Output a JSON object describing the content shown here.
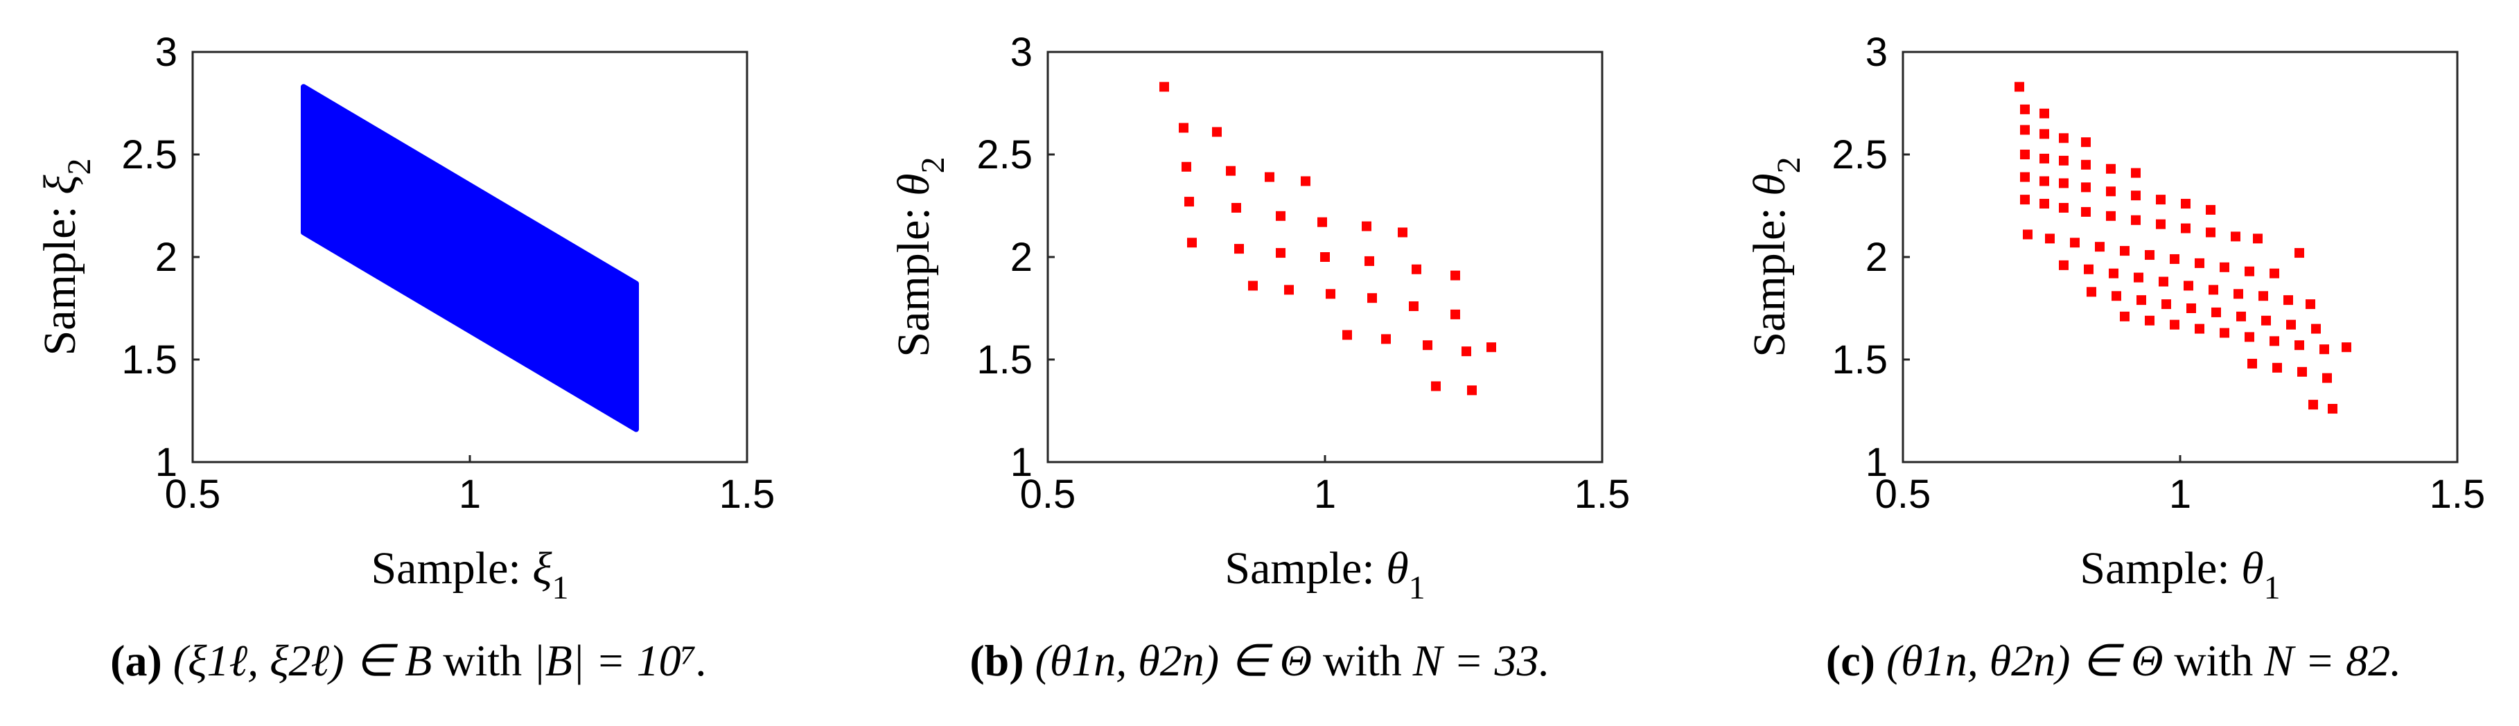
{
  "chart_data": [
    {
      "type": "scatter",
      "panel": "(a)",
      "xlabel": "Sample: ξ₁",
      "ylabel": "Sample: ξ₂",
      "xlabel_parts": {
        "prefix": "Sample: ",
        "symbol": "ξ",
        "sub": "1"
      },
      "ylabel_parts": {
        "prefix": "Sample: ",
        "symbol": "ξ",
        "sub": "2"
      },
      "xlim": [
        0.5,
        1.5
      ],
      "ylim": [
        1,
        3
      ],
      "xticks": [
        "0.5",
        "1",
        "1.5"
      ],
      "yticks": [
        "1",
        "1.5",
        "2",
        "2.5",
        "3"
      ],
      "grid": false,
      "color": "#0000ff",
      "region": {
        "description": "dense parallelogram of samples",
        "x_min": 0.7,
        "x_max": 1.3,
        "lower_at_xmin": 2.12,
        "upper_at_xmin": 2.83,
        "lower_at_xmax": 1.16,
        "upper_at_xmax": 1.87
      },
      "caption": {
        "label": "(a)",
        "math": "(ξ1ℓ, ξ2ℓ) ∈ B",
        "mid": " with ",
        "tail": "|B| = 10⁷."
      }
    },
    {
      "type": "scatter",
      "panel": "(b)",
      "xlabel": "Sample: θ₁",
      "ylabel": "Sample: θ₂",
      "xlabel_parts": {
        "prefix": "Sample: ",
        "symbol": "θ",
        "sub": "1"
      },
      "ylabel_parts": {
        "prefix": "Sample: ",
        "symbol": "θ",
        "sub": "2"
      },
      "xlim": [
        0.5,
        1.5
      ],
      "ylim": [
        1,
        3
      ],
      "xticks": [
        "0.5",
        "1",
        "1.5"
      ],
      "yticks": [
        "1",
        "1.5",
        "2",
        "2.5",
        "3"
      ],
      "grid": false,
      "color": "#ff0000",
      "points": [
        [
          0.71,
          2.83
        ],
        [
          0.745,
          2.63
        ],
        [
          0.805,
          2.61
        ],
        [
          0.75,
          2.44
        ],
        [
          0.83,
          2.42
        ],
        [
          0.9,
          2.39
        ],
        [
          0.965,
          2.37
        ],
        [
          0.755,
          2.27
        ],
        [
          0.84,
          2.24
        ],
        [
          0.92,
          2.2
        ],
        [
          0.995,
          2.17
        ],
        [
          1.075,
          2.15
        ],
        [
          1.14,
          2.12
        ],
        [
          0.76,
          2.07
        ],
        [
          0.845,
          2.04
        ],
        [
          0.92,
          2.02
        ],
        [
          1.0,
          2.0
        ],
        [
          1.08,
          1.98
        ],
        [
          1.165,
          1.94
        ],
        [
          1.235,
          1.91
        ],
        [
          0.87,
          1.86
        ],
        [
          0.935,
          1.84
        ],
        [
          1.01,
          1.82
        ],
        [
          1.085,
          1.8
        ],
        [
          1.16,
          1.76
        ],
        [
          1.235,
          1.72
        ],
        [
          1.04,
          1.62
        ],
        [
          1.11,
          1.6
        ],
        [
          1.185,
          1.57
        ],
        [
          1.255,
          1.54
        ],
        [
          1.3,
          1.56
        ],
        [
          1.2,
          1.37
        ],
        [
          1.265,
          1.35
        ]
      ],
      "caption": {
        "label": "(b)",
        "math": "(θ1n, θ2n) ∈ Θ",
        "mid": " with ",
        "tail": "N = 33."
      }
    },
    {
      "type": "scatter",
      "panel": "(c)",
      "xlabel": "Sample: θ₁",
      "ylabel": "Sample: θ₂",
      "xlabel_parts": {
        "prefix": "Sample: ",
        "symbol": "θ",
        "sub": "1"
      },
      "ylabel_parts": {
        "prefix": "Sample: ",
        "symbol": "θ",
        "sub": "2"
      },
      "xlim": [
        0.5,
        1.5
      ],
      "ylim": [
        1,
        3
      ],
      "xticks": [
        "0.5",
        "1",
        "1.5"
      ],
      "yticks": [
        "1",
        "1.5",
        "2",
        "2.5",
        "3"
      ],
      "grid": false,
      "color": "#ff0000",
      "points": [
        [
          0.71,
          2.83
        ],
        [
          0.72,
          2.72
        ],
        [
          0.755,
          2.7
        ],
        [
          0.72,
          2.62
        ],
        [
          0.755,
          2.6
        ],
        [
          0.79,
          2.58
        ],
        [
          0.83,
          2.56
        ],
        [
          0.72,
          2.5
        ],
        [
          0.755,
          2.48
        ],
        [
          0.79,
          2.47
        ],
        [
          0.83,
          2.45
        ],
        [
          0.875,
          2.43
        ],
        [
          0.92,
          2.41
        ],
        [
          0.72,
          2.39
        ],
        [
          0.755,
          2.37
        ],
        [
          0.79,
          2.36
        ],
        [
          0.83,
          2.34
        ],
        [
          0.875,
          2.32
        ],
        [
          0.92,
          2.3
        ],
        [
          0.965,
          2.28
        ],
        [
          1.01,
          2.26
        ],
        [
          1.055,
          2.23
        ],
        [
          0.72,
          2.28
        ],
        [
          0.755,
          2.26
        ],
        [
          0.79,
          2.24
        ],
        [
          0.83,
          2.22
        ],
        [
          0.875,
          2.2
        ],
        [
          0.92,
          2.18
        ],
        [
          0.965,
          2.16
        ],
        [
          1.01,
          2.14
        ],
        [
          1.055,
          2.12
        ],
        [
          1.1,
          2.1
        ],
        [
          1.14,
          2.09
        ],
        [
          0.725,
          2.11
        ],
        [
          0.765,
          2.09
        ],
        [
          0.81,
          2.07
        ],
        [
          0.855,
          2.05
        ],
        [
          0.9,
          2.03
        ],
        [
          0.945,
          2.01
        ],
        [
          0.99,
          1.99
        ],
        [
          1.035,
          1.97
        ],
        [
          1.08,
          1.95
        ],
        [
          1.125,
          1.93
        ],
        [
          1.17,
          1.92
        ],
        [
          1.215,
          2.02
        ],
        [
          0.79,
          1.96
        ],
        [
          0.835,
          1.94
        ],
        [
          0.88,
          1.92
        ],
        [
          0.925,
          1.9
        ],
        [
          0.97,
          1.88
        ],
        [
          1.015,
          1.86
        ],
        [
          1.06,
          1.84
        ],
        [
          1.105,
          1.82
        ],
        [
          1.15,
          1.81
        ],
        [
          1.195,
          1.79
        ],
        [
          1.235,
          1.77
        ],
        [
          0.84,
          1.83
        ],
        [
          0.885,
          1.81
        ],
        [
          0.93,
          1.79
        ],
        [
          0.975,
          1.77
        ],
        [
          1.02,
          1.75
        ],
        [
          1.065,
          1.73
        ],
        [
          1.11,
          1.71
        ],
        [
          1.155,
          1.69
        ],
        [
          1.2,
          1.67
        ],
        [
          1.245,
          1.65
        ],
        [
          0.9,
          1.71
        ],
        [
          0.945,
          1.69
        ],
        [
          0.99,
          1.67
        ],
        [
          1.035,
          1.65
        ],
        [
          1.08,
          1.63
        ],
        [
          1.125,
          1.61
        ],
        [
          1.17,
          1.59
        ],
        [
          1.215,
          1.57
        ],
        [
          1.26,
          1.55
        ],
        [
          1.3,
          1.56
        ],
        [
          1.13,
          1.48
        ],
        [
          1.175,
          1.46
        ],
        [
          1.22,
          1.44
        ],
        [
          1.265,
          1.41
        ],
        [
          1.24,
          1.28
        ],
        [
          1.275,
          1.26
        ]
      ],
      "caption": {
        "label": "(c)",
        "math": "(θ1n, θ2n) ∈ Θ",
        "mid": " with ",
        "tail": "N = 82."
      }
    }
  ]
}
